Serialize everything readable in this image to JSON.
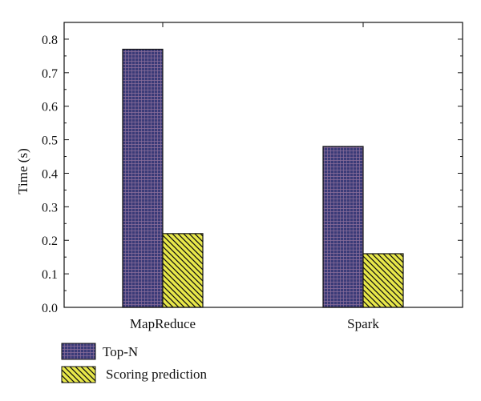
{
  "chart_data": {
    "type": "bar",
    "title": "",
    "xlabel": "",
    "ylabel": "Time (s)",
    "categories": [
      "MapReduce",
      "Spark"
    ],
    "series": [
      {
        "name": "Top-N",
        "values": [
          0.77,
          0.48
        ],
        "color": "#3b3b78",
        "pattern": "grid"
      },
      {
        "name": "Scoring prediction",
        "values": [
          0.22,
          0.16
        ],
        "color": "#e8e84a",
        "pattern": "diagonal-hatch"
      }
    ],
    "ylim": [
      0,
      0.85
    ],
    "yticks": [
      0.0,
      0.1,
      0.2,
      0.3,
      0.4,
      0.5,
      0.6,
      0.7,
      0.8
    ],
    "ytick_labels": [
      "0.0",
      "0.1",
      "0.2",
      "0.3",
      "0.4",
      "0.5",
      "0.6",
      "0.7",
      "0.8"
    ],
    "grid": false,
    "legend": {
      "placement": "bottom-left"
    }
  }
}
